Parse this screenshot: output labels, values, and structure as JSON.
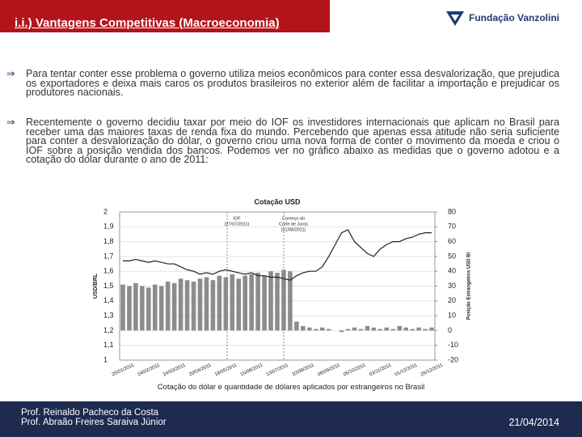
{
  "header": {
    "title": "i.i.) Vantagens Competitivas (Macroeconomia)",
    "logo": "Fundação Vanzolini"
  },
  "bullets": [
    "Para tentar conter esse problema o governo utiliza meios econômicos para conter essa desvalorização, que prejudica os exportadores e deixa mais caros os produtos brasileiros no exterior além de facilitar a importação e prejudicar os produtores nacionais.",
    "Recentemente o governo decidiu taxar por meio do IOF os investidores internacionais que aplicam no Brasil para receber uma das maiores taxas de renda fixa do mundo. Percebendo que apenas essa atitude não seria suficiente para conter a desvalorização do dólar, o governo criou uma nova forma de conter o movimento da moeda e criou o IOF sobre a posição vendida dos bancos. Podemos ver no gráfico abaixo as medidas que o governo adotou e a cotação do dólar durante o ano de 2011:"
  ],
  "chart_data": {
    "type": "line",
    "title": "Cotação USD",
    "y_label": "USD/BRL",
    "y2_label": "Posição Estrangeiros USD Bi",
    "annotations": [
      [
        "IOF",
        "(27/07/2011)"
      ],
      [
        "Começo do",
        "Corte de Juros",
        "(31/08/2011)"
      ]
    ],
    "categories": [
      "25/01/2011",
      null,
      null,
      null,
      "24/02/2011",
      null,
      null,
      null,
      "24/03/2011",
      null,
      null,
      null,
      "20/04/2011",
      null,
      null,
      null,
      "18/05/2011",
      null,
      null,
      null,
      "15/06/2011",
      null,
      null,
      null,
      "13/07/2011",
      null,
      null,
      null,
      "10/08/2011",
      null,
      null,
      null,
      "08/09/2011",
      null,
      null,
      null,
      "05/10/2011",
      null,
      null,
      null,
      "03/11/2011",
      null,
      null,
      null,
      "01/12/2011",
      null,
      null,
      null,
      "29/12/2011"
    ],
    "series": [
      {
        "type": "bar",
        "axis": "y2",
        "color": "#8c8c8c",
        "values": [
          31,
          30,
          32,
          30,
          29,
          31,
          30,
          33,
          32,
          35,
          34,
          33,
          35,
          36,
          34,
          37,
          36,
          38,
          35,
          37,
          38,
          39,
          37,
          40,
          39,
          41,
          40,
          6,
          3,
          2,
          1,
          2,
          1,
          0,
          -1,
          1,
          2,
          1,
          3,
          2,
          1,
          2,
          1,
          3,
          2,
          1,
          2,
          1,
          2
        ]
      },
      {
        "type": "line",
        "color": "#222222",
        "values": [
          1.67,
          1.67,
          1.68,
          1.67,
          1.66,
          1.67,
          1.66,
          1.65,
          1.65,
          1.63,
          1.61,
          1.6,
          1.58,
          1.59,
          1.58,
          1.6,
          1.61,
          1.6,
          1.59,
          1.58,
          1.59,
          1.57,
          1.57,
          1.56,
          1.56,
          1.55,
          1.54,
          1.57,
          1.59,
          1.6,
          1.6,
          1.63,
          1.7,
          1.78,
          1.86,
          1.88,
          1.8,
          1.76,
          1.72,
          1.7,
          1.75,
          1.78,
          1.8,
          1.8,
          1.82,
          1.83,
          1.85,
          1.86,
          1.86
        ]
      }
    ],
    "ylim": [
      1,
      2
    ],
    "yticks": [
      1,
      {
        "value": 1.1,
        "label": "1,1"
      },
      {
        "value": 1.2,
        "label": "1,2"
      },
      {
        "value": 1.3,
        "label": "1,3"
      },
      {
        "value": 1.4,
        "label": "1,4"
      },
      {
        "value": 1.5,
        "label": "1,5"
      },
      {
        "value": 1.6,
        "label": "1,6"
      },
      {
        "value": 1.7,
        "label": "1,7"
      },
      {
        "value": 1.8,
        "label": "1,8"
      },
      {
        "value": 1.9,
        "label": "1,9"
      },
      2
    ],
    "y2lim": [
      -20,
      80
    ],
    "y2ticks": [
      -20,
      -10,
      0,
      10,
      20,
      30,
      40,
      50,
      60,
      70,
      80
    ]
  },
  "caption": "Cotação do dólar e quantidade de dólares aplicados por estrangeiros no Brasil",
  "footer": {
    "authors": [
      "Prof. Reinaldo Pacheco da Costa",
      "Prof. Abraão Freires Saraiva Júnior"
    ],
    "date": "21/04/2014"
  }
}
